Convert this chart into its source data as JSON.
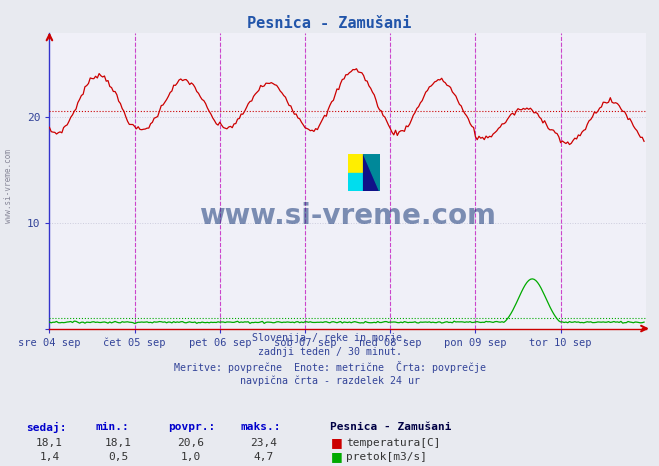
{
  "title": "Pesnica - Zamušani",
  "title_color": "#2255aa",
  "outer_bg": "#e8eaf0",
  "plot_bg": "#f0f0f8",
  "grid_color": "#ccccdd",
  "grid_style": ":",
  "left_spine_color": "#3333cc",
  "bottom_spine_color": "#cc0000",
  "temp_color": "#cc0000",
  "flow_color": "#00aa00",
  "avg_line_color": "#cc0000",
  "avg_flow_color": "#00aa00",
  "vline_color": "#cc44cc",
  "hline_color": "#cc0000",
  "temp_avg": 20.6,
  "flow_avg": 1.0,
  "xlim": [
    0,
    336
  ],
  "ylim_temp": [
    15,
    28
  ],
  "ylim_flow": [
    0,
    7
  ],
  "y_ticks_temp": [
    20,
    10
  ],
  "day_labels": [
    "sre 04 sep",
    "čet 05 sep",
    "pet 06 sep",
    "sob 07 sep",
    "ned 08 sep",
    "pon 09 sep",
    "tor 10 sep"
  ],
  "day_tick_positions": [
    0,
    48,
    96,
    144,
    192,
    240,
    288
  ],
  "subtitle_lines": [
    "Slovenija / reke in morje.",
    "zadnji teden / 30 minut.",
    "Meritve: povprečne  Enote: metrične  Črta: povprečje",
    "navpična črta - razdelek 24 ur"
  ],
  "footer_label1": "sedaj:",
  "footer_label2": "min.:",
  "footer_label3": "povpr.:",
  "footer_label4": "maks.:",
  "footer_station": "Pesnica - Zamušani",
  "footer_temp_label": "temperatura[C]",
  "footer_flow_label": "pretok[m3/s]",
  "footer_temp_vals": [
    "18,1",
    "18,1",
    "20,6",
    "23,4"
  ],
  "footer_flow_vals": [
    "1,4",
    "0,5",
    "1,0",
    "4,7"
  ],
  "watermark": "www.si-vreme.com",
  "watermark_color": "#1a3a7a",
  "side_text": "www.si-vreme.com",
  "text_color": "#334499"
}
